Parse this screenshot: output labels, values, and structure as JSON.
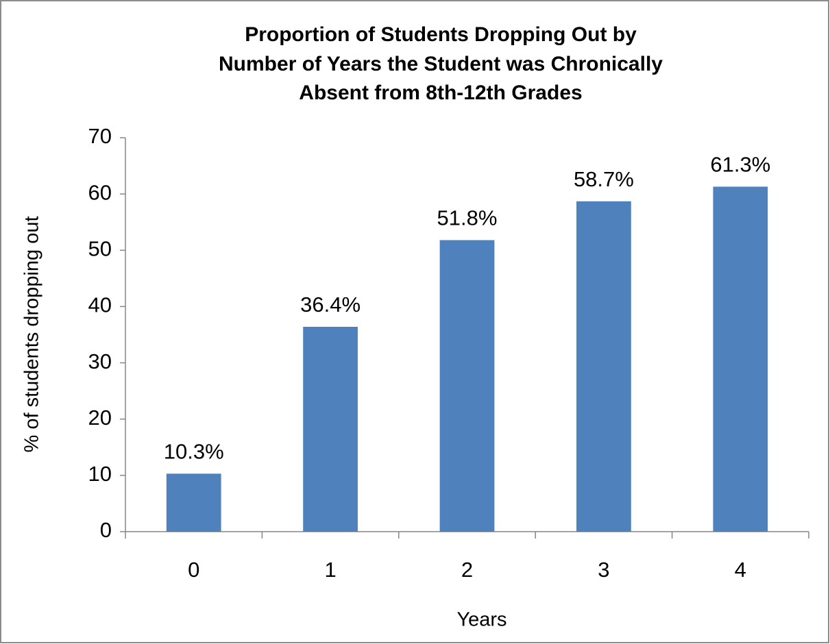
{
  "chart_data": {
    "type": "bar",
    "title": [
      "Proportion of Students Dropping Out by",
      "Number of Years the Student was Chronically",
      "Absent from 8th-12th Grades"
    ],
    "x_label": "Years",
    "y_label": "% of students dropping out",
    "categories": [
      "0",
      "1",
      "2",
      "3",
      "4"
    ],
    "values": [
      10.3,
      36.4,
      51.8,
      58.7,
      61.3
    ],
    "value_labels": [
      "10.3%",
      "36.4%",
      "51.8%",
      "58.7%",
      "61.3%"
    ],
    "color": "#4f81bd",
    "ylim": [
      0,
      70
    ],
    "yticks": [
      0,
      10,
      20,
      30,
      40,
      50,
      60,
      70
    ],
    "grid": false
  }
}
